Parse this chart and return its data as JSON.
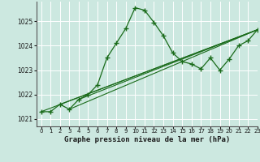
{
  "title": "Graphe pression niveau de la mer (hPa)",
  "bg_color": "#cce8e0",
  "grid_color": "#ffffff",
  "line_color": "#1a6b1a",
  "xlim": [
    -0.5,
    23
  ],
  "ylim": [
    1020.7,
    1025.8
  ],
  "yticks": [
    1021,
    1022,
    1023,
    1024,
    1025
  ],
  "xticks": [
    0,
    1,
    2,
    3,
    4,
    5,
    6,
    7,
    8,
    9,
    10,
    11,
    12,
    13,
    14,
    15,
    16,
    17,
    18,
    19,
    20,
    21,
    22,
    23
  ],
  "main_x": [
    0,
    1,
    2,
    3,
    4,
    5,
    6,
    7,
    8,
    9,
    10,
    11,
    12,
    13,
    14,
    15,
    16,
    17,
    18,
    19,
    20,
    21,
    22,
    23
  ],
  "main_y": [
    1021.3,
    1021.3,
    1021.6,
    1021.4,
    1021.8,
    1022.0,
    1022.4,
    1023.5,
    1024.1,
    1024.7,
    1025.55,
    1025.45,
    1024.95,
    1024.4,
    1023.7,
    1023.35,
    1023.25,
    1023.05,
    1023.5,
    1023.0,
    1023.45,
    1024.0,
    1024.2,
    1024.65
  ],
  "trend_lines": [
    {
      "x0": 0,
      "y0": 1021.3,
      "x1": 23,
      "y1": 1024.65
    },
    {
      "x0": 2,
      "y0": 1021.6,
      "x1": 23,
      "y1": 1024.65
    },
    {
      "x0": 3,
      "y0": 1021.4,
      "x1": 23,
      "y1": 1024.65
    },
    {
      "x0": 4,
      "y0": 1021.8,
      "x1": 23,
      "y1": 1024.65
    }
  ]
}
